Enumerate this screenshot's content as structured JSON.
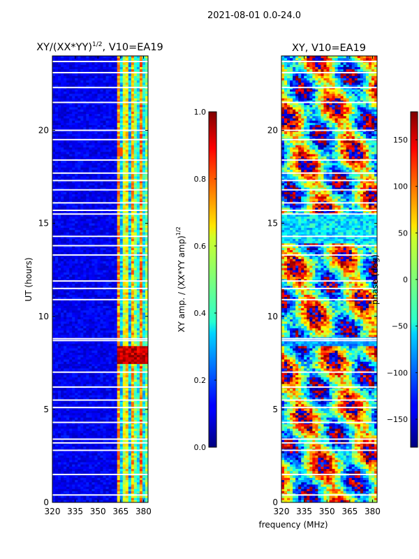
{
  "suptitle": "2021-08-01 0.0-24.0",
  "chart_data": [
    {
      "type": "heatmap",
      "title_main": "XY/(XX*YY)",
      "title_sup": "1/2",
      "title_tail": ", V10=EA19",
      "ylabel": "UT (hours)",
      "xlim": [
        320,
        383
      ],
      "ylim": [
        0,
        24
      ],
      "xticks": [
        320,
        335,
        350,
        365,
        380
      ],
      "yticks": [
        0,
        5,
        10,
        15,
        20
      ],
      "colorbar": {
        "label_main": "XY amp. / (XX*YY amp)",
        "label_sup": "1/2",
        "range": [
          0.0,
          1.0
        ],
        "ticks": [
          "0.0",
          "0.2",
          "0.4",
          "0.6",
          "0.8",
          "1.0"
        ],
        "tick_values": [
          0.0,
          0.2,
          0.4,
          0.6,
          0.8,
          1.0
        ]
      }
    },
    {
      "type": "heatmap",
      "title": "XY, V10=EA19",
      "xlabel": "frequency (MHz)",
      "xlim": [
        320,
        383
      ],
      "ylim": [
        0,
        24
      ],
      "xticks": [
        320,
        335,
        350,
        365,
        380
      ],
      "yticks": [
        0,
        5,
        10,
        15,
        20
      ],
      "colorbar": {
        "label": "phase (deg)",
        "range": [
          -180,
          180
        ],
        "ticks": [
          "−150",
          "−100",
          "−50",
          "0",
          "50",
          "100",
          "150"
        ],
        "tick_values": [
          -150,
          -100,
          -50,
          0,
          50,
          100,
          150
        ]
      }
    }
  ]
}
